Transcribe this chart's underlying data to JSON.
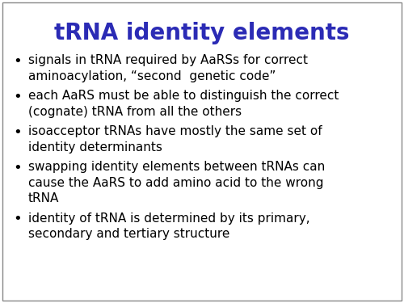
{
  "title": "tRNA identity elements",
  "title_color": "#2B2BB5",
  "title_fontsize": 20,
  "title_fontstyle": "bold",
  "background_color": "#FFFFFF",
  "bullet_color": "#000000",
  "bullet_fontsize": 11.0,
  "border_color": "#888888",
  "bullets": [
    {
      "lines": [
        "signals in tRNA required by AaRSs for correct",
        "aminoacylation, “second  genetic code”"
      ]
    },
    {
      "lines": [
        "each AaRS must be able to distinguish the correct",
        "(cognate) tRNA from all the others"
      ]
    },
    {
      "lines": [
        "isoacceptor tRNAs have mostly the same set of",
        "identity determinants"
      ]
    },
    {
      "lines": [
        "swapping identity elements between tRNAs can",
        "cause the AaRS to add amino acid to the wrong",
        "tRNA"
      ]
    },
    {
      "lines": [
        "identity of tRNA is determined by its primary,",
        "secondary and tertiary structure"
      ]
    }
  ]
}
